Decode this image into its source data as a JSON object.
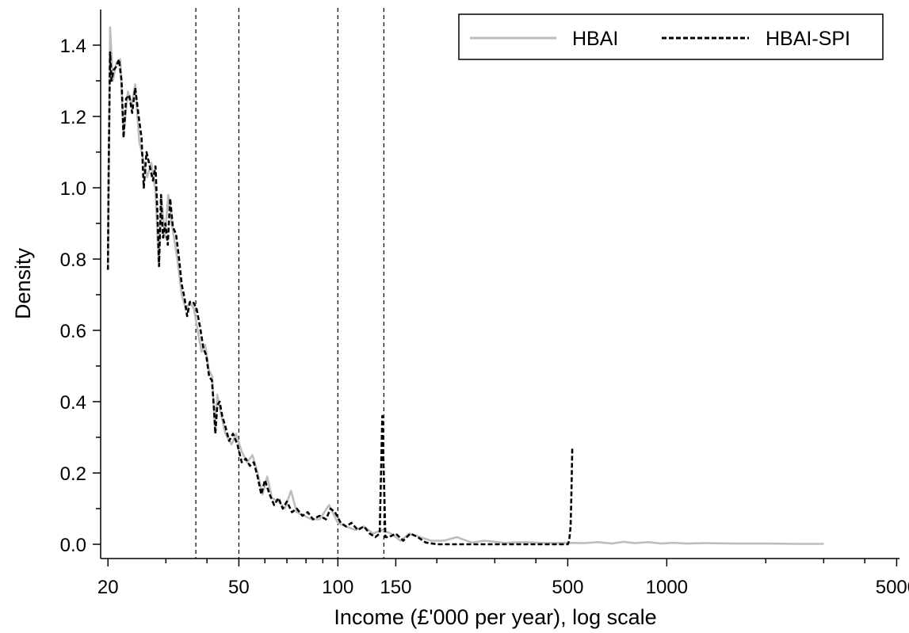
{
  "chart_data": {
    "type": "line",
    "title": "",
    "xlabel": "Income (£'000 per year), log scale",
    "ylabel": "Density",
    "x_scale": "log",
    "xlim": [
      19,
      5100
    ],
    "ylim": [
      -0.04,
      1.5
    ],
    "xticks": [
      20,
      50,
      100,
      150,
      500,
      1000,
      5000
    ],
    "xtick_labels": [
      "20",
      "50",
      "100",
      "150",
      "500",
      "1000",
      "5000"
    ],
    "yticks": [
      0.0,
      0.2,
      0.4,
      0.6,
      0.8,
      1.0,
      1.2,
      1.4
    ],
    "ytick_labels": [
      "0.0",
      "0.2",
      "0.4",
      "0.6",
      "0.8",
      "1.0",
      "1.2",
      "1.4"
    ],
    "reference_lines_x": [
      37,
      50,
      100,
      138
    ],
    "grid": false,
    "legend": {
      "position": "top-right",
      "entries": [
        "HBAI",
        "HBAI-SPI"
      ]
    },
    "series": [
      {
        "name": "HBAI",
        "color": "#bdbdbd",
        "style": "solid",
        "points": [
          [
            20.0,
            0.78
          ],
          [
            20.3,
            1.45
          ],
          [
            20.7,
            1.3
          ],
          [
            21.2,
            1.35
          ],
          [
            21.8,
            1.36
          ],
          [
            22.3,
            1.15
          ],
          [
            23.0,
            1.27
          ],
          [
            23.6,
            1.23
          ],
          [
            24.2,
            1.29
          ],
          [
            24.9,
            1.13
          ],
          [
            25.6,
            1.08
          ],
          [
            26.3,
            1.03
          ],
          [
            27.1,
            1.07
          ],
          [
            27.9,
            0.99
          ],
          [
            28.5,
            0.79
          ],
          [
            29.1,
            0.97
          ],
          [
            29.8,
            0.86
          ],
          [
            30.5,
            0.98
          ],
          [
            31.5,
            0.88
          ],
          [
            32.5,
            0.8
          ],
          [
            33.5,
            0.7
          ],
          [
            34.5,
            0.66
          ],
          [
            35.5,
            0.68
          ],
          [
            36.5,
            0.66
          ],
          [
            37.5,
            0.6
          ],
          [
            38.5,
            0.54
          ],
          [
            39.5,
            0.56
          ],
          [
            40.5,
            0.49
          ],
          [
            41.5,
            0.47
          ],
          [
            42.3,
            0.32
          ],
          [
            43.0,
            0.42
          ],
          [
            44.0,
            0.37
          ],
          [
            45.5,
            0.31
          ],
          [
            47.5,
            0.28
          ],
          [
            49.0,
            0.31
          ],
          [
            51.0,
            0.26
          ],
          [
            53.0,
            0.23
          ],
          [
            55.0,
            0.25
          ],
          [
            57.0,
            0.2
          ],
          [
            59.0,
            0.14
          ],
          [
            61.0,
            0.19
          ],
          [
            63.0,
            0.13
          ],
          [
            66.0,
            0.12
          ],
          [
            69.0,
            0.1
          ],
          [
            72.0,
            0.15
          ],
          [
            75.0,
            0.09
          ],
          [
            79.0,
            0.08
          ],
          [
            83.0,
            0.07
          ],
          [
            88.0,
            0.07
          ],
          [
            94.0,
            0.11
          ],
          [
            100.0,
            0.06
          ],
          [
            106.0,
            0.05
          ],
          [
            113.0,
            0.04
          ],
          [
            120.0,
            0.05
          ],
          [
            128.0,
            0.03
          ],
          [
            136.0,
            0.04
          ],
          [
            145.0,
            0.03
          ],
          [
            155.0,
            0.01
          ],
          [
            165.0,
            0.03
          ],
          [
            178.0,
            0.02
          ],
          [
            192.0,
            0.01
          ],
          [
            210.0,
            0.01
          ],
          [
            230.0,
            0.02
          ],
          [
            255.0,
            0.005
          ],
          [
            280.0,
            0.01
          ],
          [
            320.0,
            0.004
          ],
          [
            370.0,
            0.006
          ],
          [
            430.0,
            0.003
          ],
          [
            500.0,
            0.004
          ],
          [
            560.0,
            0.003
          ],
          [
            620.0,
            0.006
          ],
          [
            680.0,
            0.002
          ],
          [
            740.0,
            0.007
          ],
          [
            800.0,
            0.003
          ],
          [
            880.0,
            0.006
          ],
          [
            960.0,
            0.002
          ],
          [
            1050.0,
            0.004
          ],
          [
            1150.0,
            0.002
          ],
          [
            1300.0,
            0.003
          ],
          [
            1600.0,
            0.002
          ],
          [
            2000.0,
            0.002
          ],
          [
            2500.0,
            0.001
          ],
          [
            3000.0,
            0.001
          ]
        ]
      },
      {
        "name": "HBAI-SPI",
        "color": "#000000",
        "style": "dashed",
        "points": [
          [
            20.0,
            0.77
          ],
          [
            20.1,
            1.05
          ],
          [
            20.3,
            1.38
          ],
          [
            20.5,
            1.3
          ],
          [
            20.8,
            1.33
          ],
          [
            21.2,
            1.34
          ],
          [
            21.6,
            1.36
          ],
          [
            22.0,
            1.3
          ],
          [
            22.3,
            1.14
          ],
          [
            22.7,
            1.25
          ],
          [
            23.2,
            1.26
          ],
          [
            23.7,
            1.21
          ],
          [
            24.2,
            1.28
          ],
          [
            24.8,
            1.2
          ],
          [
            25.3,
            1.14
          ],
          [
            25.7,
            1.0
          ],
          [
            26.2,
            1.1
          ],
          [
            26.8,
            1.06
          ],
          [
            27.4,
            1.02
          ],
          [
            27.9,
            1.06
          ],
          [
            28.3,
            0.92
          ],
          [
            28.6,
            0.78
          ],
          [
            29.0,
            0.98
          ],
          [
            29.4,
            0.86
          ],
          [
            29.9,
            0.9
          ],
          [
            30.4,
            0.84
          ],
          [
            30.9,
            0.97
          ],
          [
            31.5,
            0.89
          ],
          [
            32.2,
            0.87
          ],
          [
            32.9,
            0.8
          ],
          [
            33.5,
            0.73
          ],
          [
            34.2,
            0.69
          ],
          [
            34.8,
            0.64
          ],
          [
            35.5,
            0.68
          ],
          [
            36.3,
            0.68
          ],
          [
            37.2,
            0.66
          ],
          [
            38.1,
            0.61
          ],
          [
            39.0,
            0.55
          ],
          [
            39.8,
            0.53
          ],
          [
            40.6,
            0.47
          ],
          [
            41.4,
            0.46
          ],
          [
            42.0,
            0.38
          ],
          [
            42.4,
            0.31
          ],
          [
            43.0,
            0.39
          ],
          [
            43.7,
            0.4
          ],
          [
            44.5,
            0.36
          ],
          [
            45.5,
            0.33
          ],
          [
            46.7,
            0.29
          ],
          [
            48.0,
            0.31
          ],
          [
            49.5,
            0.28
          ],
          [
            51.0,
            0.23
          ],
          [
            52.5,
            0.24
          ],
          [
            54.0,
            0.22
          ],
          [
            55.5,
            0.23
          ],
          [
            57.0,
            0.19
          ],
          [
            58.5,
            0.14
          ],
          [
            60.0,
            0.18
          ],
          [
            62.0,
            0.14
          ],
          [
            64.0,
            0.11
          ],
          [
            66.0,
            0.13
          ],
          [
            68.0,
            0.1
          ],
          [
            70.0,
            0.12
          ],
          [
            72.5,
            0.09
          ],
          [
            75.0,
            0.1
          ],
          [
            78.0,
            0.08
          ],
          [
            81.0,
            0.09
          ],
          [
            84.0,
            0.07
          ],
          [
            88.0,
            0.08
          ],
          [
            92.0,
            0.07
          ],
          [
            95.0,
            0.1
          ],
          [
            98.0,
            0.09
          ],
          [
            102.0,
            0.06
          ],
          [
            106.0,
            0.05
          ],
          [
            110.0,
            0.06
          ],
          [
            115.0,
            0.04
          ],
          [
            120.0,
            0.05
          ],
          [
            125.0,
            0.03
          ],
          [
            130.0,
            0.02
          ],
          [
            134.0,
            0.03
          ],
          [
            136.5,
            0.36
          ],
          [
            139.5,
            0.02
          ],
          [
            143.0,
            0.02
          ],
          [
            150.0,
            0.03
          ],
          [
            158.0,
            0.01
          ],
          [
            166.0,
            0.03
          ],
          [
            175.0,
            0.02
          ],
          [
            185.0,
            0.005
          ],
          [
            200.0,
            0.0
          ],
          [
            230.0,
            0.0
          ],
          [
            270.0,
            0.0
          ],
          [
            320.0,
            0.0
          ],
          [
            380.0,
            0.0
          ],
          [
            450.0,
            0.0
          ],
          [
            500.0,
            0.0
          ],
          [
            505.0,
            0.01
          ],
          [
            510.0,
            0.05
          ],
          [
            513.0,
            0.14
          ],
          [
            516.0,
            0.27
          ]
        ]
      }
    ]
  }
}
